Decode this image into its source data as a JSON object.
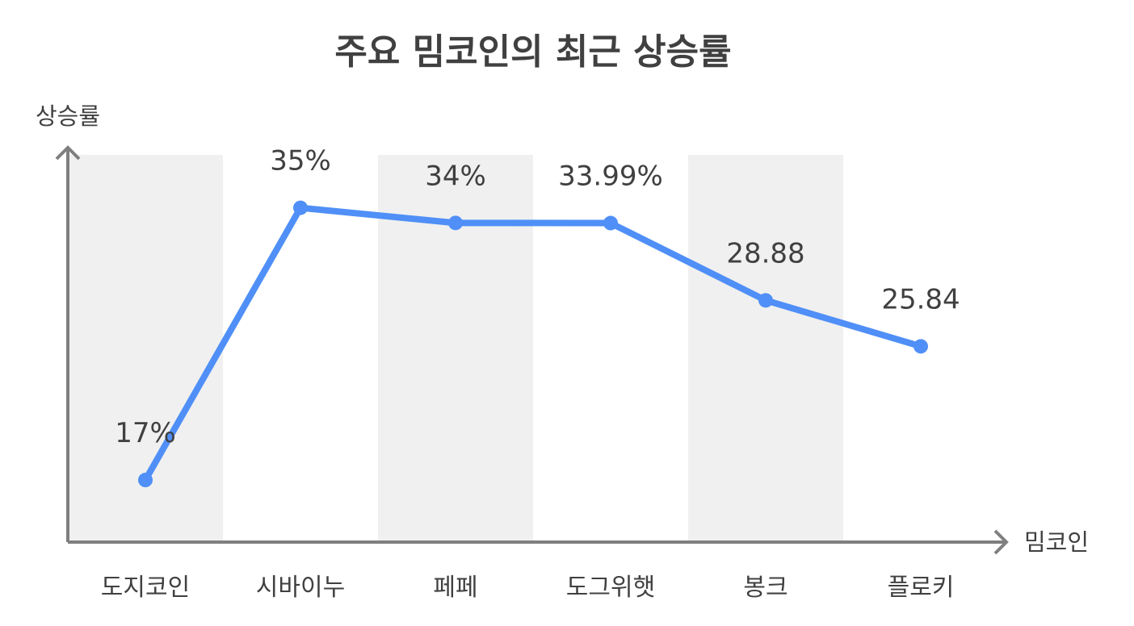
{
  "chart_data": {
    "type": "line",
    "title": "주요 밈코인의 최근 상승률",
    "xlabel": "밈코인",
    "ylabel": "상승률",
    "categories": [
      "도지코인",
      "시바이누",
      "페페",
      "도그위햇",
      "봉크",
      "플로키"
    ],
    "values": [
      17,
      35,
      34,
      33.99,
      28.88,
      25.84
    ],
    "data_labels": [
      "17%",
      "35%",
      "34%",
      "33.99%",
      "28.88",
      "25.84"
    ],
    "ylim": [
      13,
      38.5
    ],
    "grid": false,
    "band_color": "#f0f0f0",
    "line_color": "#4f8ff7",
    "text_color": "#404040",
    "axis_color": "#7f7f7f"
  }
}
